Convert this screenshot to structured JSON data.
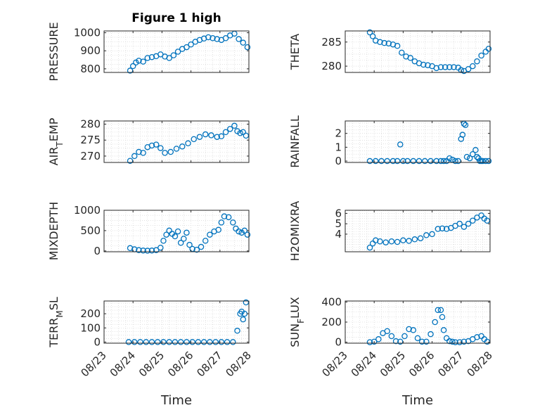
{
  "title": "Figure 1 high",
  "x_axis": {
    "label": "Time",
    "ticks": [
      "08/23",
      "08/24",
      "08/25",
      "08/26",
      "08/27",
      "08/28"
    ]
  },
  "colors": {
    "marker": "#0072BD",
    "axis": "#262626",
    "grid": "#d0d0d0"
  },
  "chart_data": [
    {
      "type": "scatter",
      "ylabel": "PRESSURE",
      "xlim": [
        23,
        28
      ],
      "ylim": [
        780,
        1010
      ],
      "yticks": [
        "800",
        "900",
        "1000"
      ],
      "ytick_values": [
        800,
        900,
        1000
      ],
      "x": [
        23.9,
        24.0,
        24.1,
        24.2,
        24.35,
        24.5,
        24.65,
        24.8,
        24.95,
        25.1,
        25.25,
        25.4,
        25.55,
        25.7,
        25.85,
        26.0,
        26.15,
        26.3,
        26.45,
        26.6,
        26.75,
        26.9,
        27.05,
        27.2,
        27.35,
        27.5,
        27.65,
        27.8,
        27.95
      ],
      "y": [
        790,
        815,
        835,
        845,
        840,
        860,
        865,
        870,
        880,
        868,
        860,
        875,
        895,
        910,
        920,
        935,
        950,
        960,
        968,
        975,
        970,
        965,
        960,
        970,
        985,
        995,
        965,
        945,
        920
      ]
    },
    {
      "type": "scatter",
      "ylabel": "THETA",
      "xlim": [
        23,
        28
      ],
      "ylim": [
        278.7,
        287.3
      ],
      "yticks": [
        "280",
        "285"
      ],
      "ytick_values": [
        280,
        285
      ],
      "x": [
        23.85,
        23.95,
        24.05,
        24.2,
        24.35,
        24.5,
        24.65,
        24.8,
        24.95,
        25.1,
        25.25,
        25.4,
        25.55,
        25.7,
        25.85,
        26.0,
        26.15,
        26.3,
        26.45,
        26.6,
        26.75,
        26.9,
        27.0,
        27.1,
        27.25,
        27.4,
        27.55,
        27.7,
        27.85,
        27.95
      ],
      "y": [
        287.0,
        286.2,
        285.3,
        285.0,
        284.8,
        284.7,
        284.5,
        284.2,
        282.8,
        282.0,
        281.7,
        281.0,
        280.6,
        280.3,
        280.2,
        280.0,
        279.6,
        279.8,
        279.8,
        279.8,
        279.8,
        279.7,
        279.2,
        279.0,
        279.4,
        280.0,
        281.0,
        282.2,
        283.0,
        283.6
      ]
    },
    {
      "type": "scatter",
      "ylabel": "AIR_TEMP",
      "xlim": [
        23,
        28
      ],
      "ylim": [
        268,
        281
      ],
      "yticks": [
        "270",
        "275",
        "280"
      ],
      "ytick_values": [
        270,
        275,
        280
      ],
      "x": [
        23.9,
        24.05,
        24.2,
        24.35,
        24.5,
        24.65,
        24.8,
        24.95,
        25.1,
        25.3,
        25.5,
        25.7,
        25.9,
        26.1,
        26.3,
        26.5,
        26.7,
        26.9,
        27.05,
        27.2,
        27.35,
        27.5,
        27.6,
        27.7,
        27.8,
        27.9
      ],
      "y": [
        268.5,
        270,
        271.3,
        271.0,
        272.8,
        273.3,
        273.6,
        272.5,
        271.0,
        271.3,
        272.3,
        273.0,
        274.0,
        275.3,
        276.0,
        276.8,
        276.5,
        276.0,
        276.2,
        277.5,
        278.5,
        279.5,
        277.8,
        277.2,
        277.5,
        276.4
      ]
    },
    {
      "type": "scatter",
      "ylabel": "RAINFALL",
      "xlim": [
        23,
        28
      ],
      "ylim": [
        -0.1,
        2.9
      ],
      "yticks": [
        "0",
        "1",
        "2"
      ],
      "ytick_values": [
        0,
        1,
        2
      ],
      "x": [
        23.85,
        24.05,
        24.25,
        24.45,
        24.65,
        24.8,
        24.9,
        25.0,
        25.15,
        25.35,
        25.55,
        25.75,
        25.95,
        26.15,
        26.3,
        26.4,
        26.5,
        26.6,
        26.7,
        26.8,
        26.9,
        27.0,
        27.05,
        27.1,
        27.15,
        27.2,
        27.3,
        27.4,
        27.5,
        27.55,
        27.6,
        27.65,
        27.7,
        27.75,
        27.85,
        27.95
      ],
      "y": [
        0,
        0,
        0,
        0,
        0,
        0,
        1.2,
        0,
        0,
        0,
        0,
        0,
        0,
        0,
        0,
        0,
        0,
        0.2,
        0.1,
        0,
        0,
        1.6,
        1.9,
        2.7,
        2.6,
        0.3,
        0.2,
        0.5,
        0.8,
        0.3,
        0.2,
        0,
        0,
        0,
        0,
        0
      ]
    },
    {
      "type": "scatter",
      "ylabel": "MIXDEPTH",
      "xlim": [
        23,
        28
      ],
      "ylim": [
        -20,
        1000
      ],
      "yticks": [
        "0",
        "500",
        "1000"
      ],
      "ytick_values": [
        0,
        500,
        1000
      ],
      "x": [
        23.9,
        24.05,
        24.2,
        24.35,
        24.5,
        24.65,
        24.8,
        24.95,
        25.05,
        25.15,
        25.25,
        25.35,
        25.45,
        25.55,
        25.65,
        25.75,
        25.85,
        25.95,
        26.05,
        26.2,
        26.35,
        26.5,
        26.65,
        26.8,
        26.95,
        27.05,
        27.15,
        27.3,
        27.45,
        27.55,
        27.65,
        27.75,
        27.85,
        27.95
      ],
      "y": [
        70,
        40,
        20,
        10,
        5,
        10,
        20,
        80,
        250,
        400,
        500,
        420,
        360,
        480,
        200,
        300,
        450,
        150,
        50,
        30,
        100,
        250,
        400,
        480,
        520,
        700,
        850,
        830,
        700,
        550,
        480,
        450,
        500,
        400
      ]
    },
    {
      "type": "scatter",
      "ylabel": "H2OMIXRA",
      "xlim": [
        23,
        28
      ],
      "ylim": [
        2.3,
        6.3
      ],
      "yticks": [
        "4",
        "5",
        "6"
      ],
      "ytick_values": [
        4,
        5,
        6
      ],
      "x": [
        23.85,
        23.95,
        24.05,
        24.2,
        24.4,
        24.6,
        24.8,
        25.0,
        25.2,
        25.4,
        25.6,
        25.8,
        26.0,
        26.2,
        26.35,
        26.5,
        26.65,
        26.8,
        26.95,
        27.1,
        27.25,
        27.4,
        27.55,
        27.7,
        27.8,
        27.9
      ],
      "y": [
        2.7,
        3.1,
        3.4,
        3.3,
        3.2,
        3.3,
        3.25,
        3.4,
        3.35,
        3.5,
        3.6,
        3.9,
        4.0,
        4.5,
        4.55,
        4.5,
        4.6,
        4.8,
        5.0,
        4.7,
        5.0,
        5.3,
        5.6,
        5.8,
        5.5,
        5.3
      ]
    },
    {
      "type": "scatter",
      "ylabel": "TERR_MSL",
      "xlim": [
        23,
        28
      ],
      "ylim": [
        -8,
        290
      ],
      "yticks": [
        "0",
        "100",
        "200"
      ],
      "ytick_values": [
        0,
        100,
        200
      ],
      "x": [
        23.85,
        24.05,
        24.25,
        24.45,
        24.65,
        24.85,
        25.05,
        25.25,
        25.45,
        25.65,
        25.85,
        26.05,
        26.25,
        26.45,
        26.65,
        26.85,
        27.05,
        27.25,
        27.45,
        27.6,
        27.7,
        27.75,
        27.8,
        27.85,
        27.9
      ],
      "y": [
        0,
        0,
        0,
        0,
        0,
        0,
        0,
        0,
        0,
        0,
        0,
        0,
        0,
        0,
        0,
        0,
        0,
        0,
        0,
        80,
        200,
        215,
        160,
        200,
        280
      ]
    },
    {
      "type": "scatter",
      "ylabel": "SUN_FLUX",
      "xlim": [
        23,
        28
      ],
      "ylim": [
        -10,
        410
      ],
      "yticks": [
        "0",
        "200",
        "400"
      ],
      "ytick_values": [
        0,
        200,
        400
      ],
      "x": [
        23.85,
        24.0,
        24.15,
        24.3,
        24.45,
        24.6,
        24.75,
        24.9,
        25.05,
        25.2,
        25.35,
        25.5,
        25.65,
        25.8,
        25.95,
        26.1,
        26.2,
        26.3,
        26.35,
        26.4,
        26.5,
        26.6,
        26.7,
        26.8,
        26.95,
        27.1,
        27.25,
        27.4,
        27.55,
        27.7,
        27.8,
        27.9
      ],
      "y": [
        0,
        5,
        30,
        90,
        110,
        60,
        10,
        5,
        60,
        130,
        120,
        40,
        5,
        5,
        80,
        200,
        320,
        320,
        250,
        120,
        40,
        10,
        5,
        0,
        0,
        5,
        10,
        30,
        50,
        60,
        30,
        5
      ]
    }
  ]
}
